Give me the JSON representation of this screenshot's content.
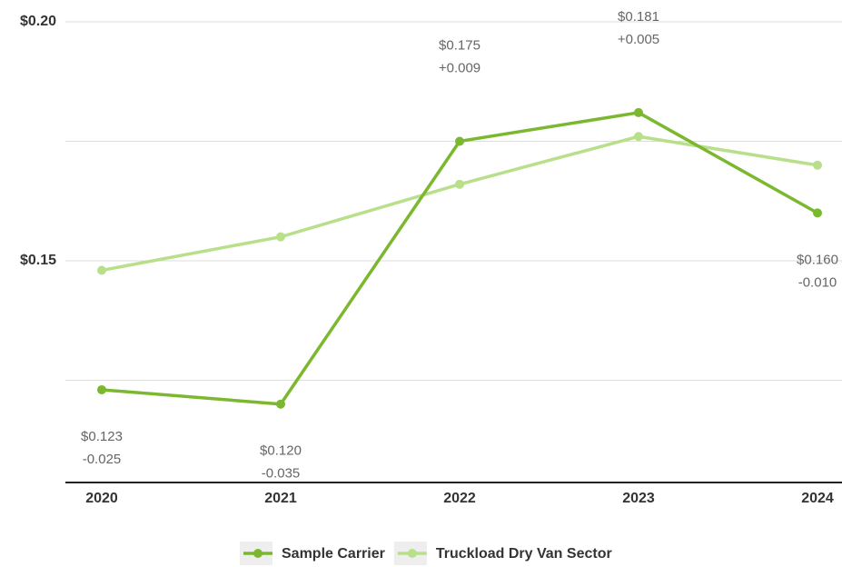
{
  "chart_data": {
    "type": "line",
    "categories": [
      "2020",
      "2021",
      "2022",
      "2023",
      "2024"
    ],
    "series": [
      {
        "name": "Sample Carrier",
        "color": "#7cb82f",
        "values": [
          0.123,
          0.12,
          0.175,
          0.181,
          0.16
        ],
        "value_labels": [
          "$0.123",
          "$0.120",
          "$0.175",
          "$0.181",
          "$0.160"
        ],
        "difference_labels": [
          "-0.025",
          "-0.035",
          "+0.009",
          "+0.005",
          "-0.010"
        ]
      },
      {
        "name": "Truckload Dry Van Sector",
        "color": "#b8e08a",
        "values": [
          0.148,
          0.155,
          0.166,
          0.176,
          0.17
        ]
      }
    ],
    "ylim": [
      0.1036,
      0.2
    ],
    "yticks": [
      {
        "value": 0.2,
        "label": "$0.20"
      },
      {
        "value": 0.175,
        "label": null
      },
      {
        "value": 0.15,
        "label": "$0.15"
      },
      {
        "value": 0.125,
        "label": null
      }
    ],
    "grid": true,
    "legend": "bottom"
  }
}
